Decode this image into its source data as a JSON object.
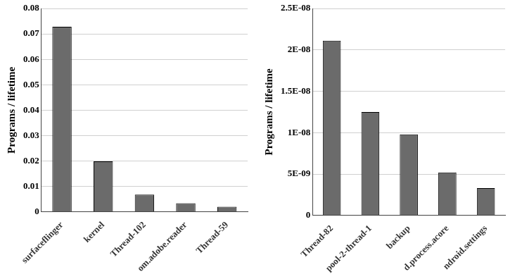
{
  "chart_data": [
    {
      "type": "bar",
      "y_label": "Programs / lifetime",
      "categories": [
        "surfaceflinger",
        "kernel",
        "Thread-102",
        "om.adobe.reader",
        "Thread-59"
      ],
      "values": [
        0.0728,
        0.0199,
        0.0068,
        0.0034,
        0.002
      ],
      "color": "#6b6b6b",
      "ylim": [
        0,
        0.08
      ],
      "yticks": [
        0,
        0.01,
        0.02,
        0.03,
        0.04,
        0.05,
        0.06,
        0.07,
        0.08
      ],
      "grid": true
    },
    {
      "type": "bar",
      "y_label": "Programs / lifetime",
      "categories": [
        "Thread-82",
        "pool-2-thread-1",
        "backup",
        "d.process.acore",
        "ndroid.settings"
      ],
      "values": [
        2.11e-08,
        1.25e-08,
        9.8e-09,
        5.2e-09,
        3.3e-09
      ],
      "color": "#6b6b6b",
      "ylim": [
        0,
        2.5e-08
      ],
      "yticks": [
        0,
        {
          "value": 5e-09,
          "label": "5E-09"
        },
        {
          "value": 1e-08,
          "label": "1E-08"
        },
        {
          "value": 1.5e-08,
          "label": "1.5E-08"
        },
        {
          "value": 2e-08,
          "label": "2E-08"
        },
        {
          "value": 2.5e-08,
          "label": "2.5E-08"
        }
      ],
      "grid": true
    }
  ]
}
